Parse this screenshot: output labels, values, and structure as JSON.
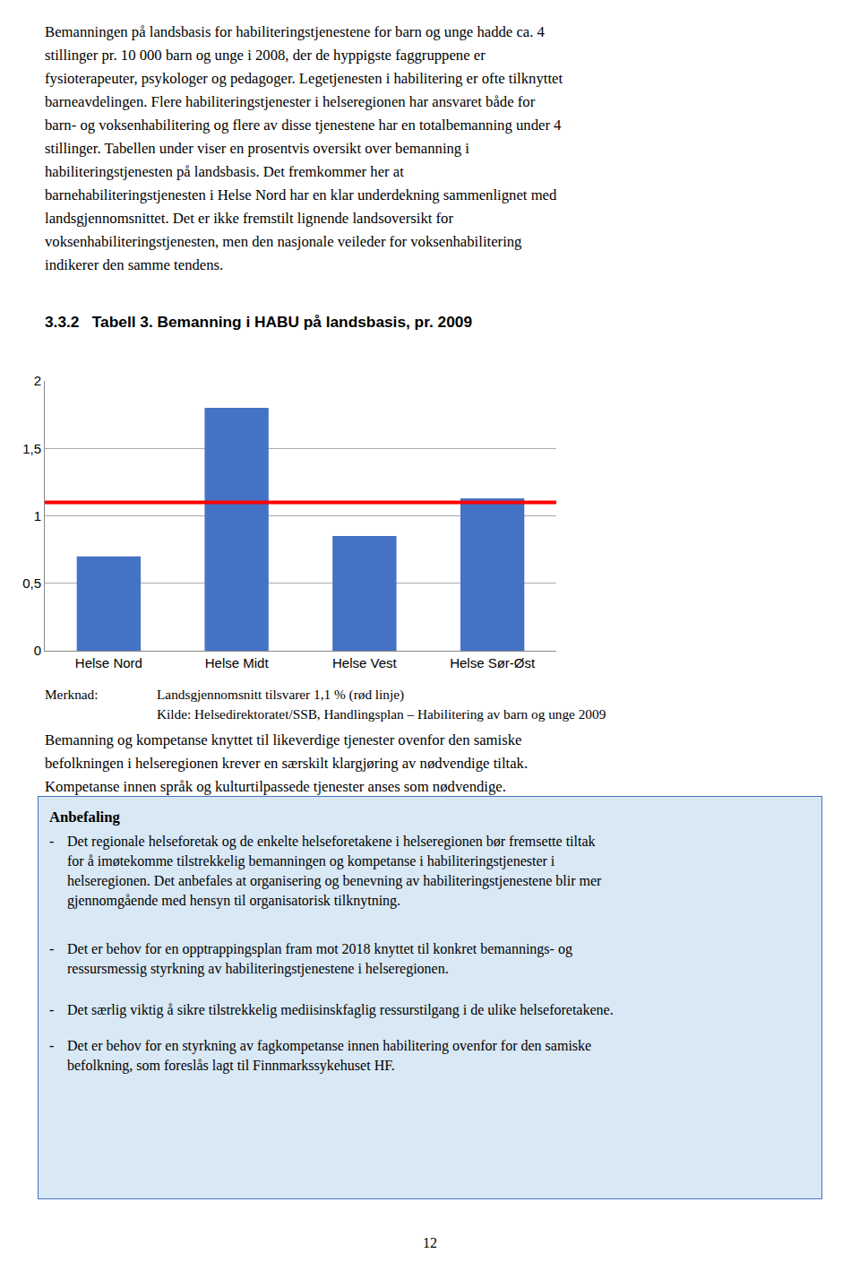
{
  "chart_data": {
    "type": "bar",
    "title": "3.3.2   Tabell 3. Bemanning i HABU på landsbasis, pr. 2009",
    "categories": [
      "Helse Nord",
      "Helse Midt",
      "Helse Vest",
      "Helse Sør-Øst"
    ],
    "values": [
      0.7,
      1.8,
      0.85,
      1.13
    ],
    "color": "#4472C4",
    "reference_line": {
      "value": 1.1,
      "color": "red"
    },
    "ylim": [
      0,
      2
    ],
    "yticks": [
      0,
      {
        "value": 0.5,
        "label": "0,5"
      },
      1,
      {
        "value": 1.5,
        "label": "1,5"
      },
      2
    ],
    "grid": true
  },
  "text_before": [
    "Bemanningen på landsbasis for habiliteringstjenestene for barn og unge hadde ca. 4",
    "stillinger pr. 10 000 barn og unge i 2008, der de hyppigste faggruppene er",
    "fysioterapeuter, psykologer og pedagoger. Legetjenesten i habilitering er ofte tilknyttet",
    "barneavdelingen. Flere habiliteringstjenester i helseregionen har ansvaret både for",
    "barn- og voksenhabilitering og flere av disse tjenestene har en totalbemanning under 4",
    "stillinger. Tabellen under viser en prosentvis oversikt over bemanning i",
    "habiliteringstjenesten på landsbasis. Det fremkommer her at",
    "barnehabiliteringstjenesten i Helse Nord har en klar underdekning sammenlignet med",
    "landsgjennomsnittet. Det er ikke fremstilt lignende landsoversikt for",
    "voksenhabiliteringstjenesten, men den nasjonale veileder for voksenhabilitering",
    "indikerer den samme tendens."
  ],
  "note_label": "Merknad:",
  "note_lines": [
    "Landsgjennomsnitt tilsvarer 1,1 % (rød linje)",
    "Kilde: Helsedirektoratet/SSB, Handlingsplan – Habilitering av barn og unge 2009"
  ],
  "text_after": [
    "Bemanning og kompetanse knyttet til likeverdige tjenester ovenfor den samiske",
    "befolkningen i helseregionen krever en særskilt klargjøring av nødvendige tiltak.",
    "Kompetanse innen språk og kulturtilpassede tjenester anses som nødvendige."
  ],
  "box": {
    "title": "Anbefaling",
    "bullet": "-",
    "items": [
      [
        "Det regionale helseforetak og de enkelte helseforetakene i helseregionen bør fremsette tiltak",
        "for å imøtekomme tilstrekkelig bemanningen og kompetanse i habiliteringstjenester i",
        "helseregionen. Det anbefales at organisering og benevning av habiliteringstjenestene blir mer",
        "gjennomgående med hensyn til organisatorisk tilknytning."
      ],
      [
        "Det er behov for en opptrappingsplan fram mot 2018 knyttet til konkret bemannings- og",
        "ressursmessig styrkning av habiliteringstjenestene i helseregionen."
      ],
      [
        "Det særlig viktig å sikre tilstrekkelig mediisinskfaglig ressurstilgang i de ulike helseforetakene."
      ],
      [
        "Det er behov for en styrkning av fagkompetanse innen habilitering ovenfor for den samiske",
        "befolkning, som foreslås lagt til Finnmarkssykehuset HF."
      ]
    ]
  },
  "page_number": "12"
}
